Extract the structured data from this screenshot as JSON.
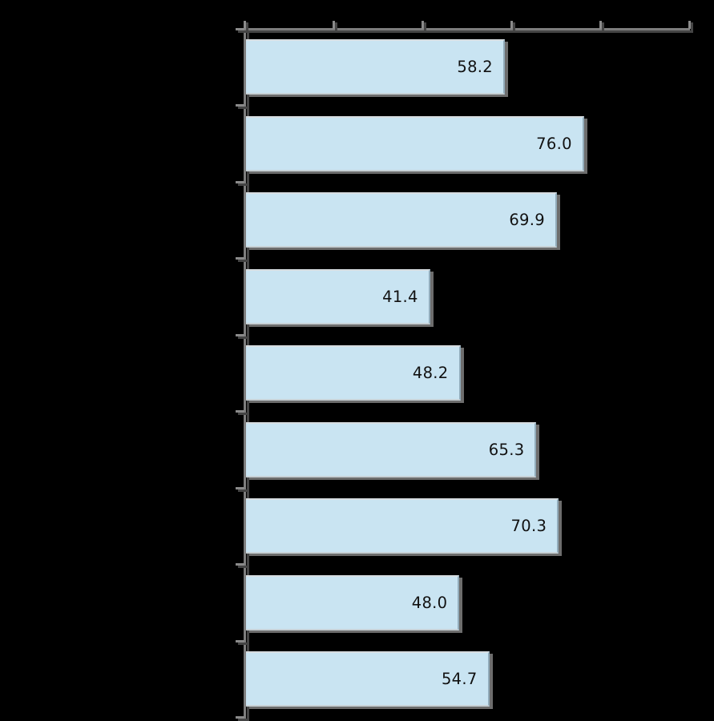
{
  "chart_data": {
    "type": "bar",
    "orientation": "horizontal",
    "title": "",
    "categories": [
      "",
      "",
      "",
      "",
      "",
      "",
      "",
      "",
      ""
    ],
    "values": [
      58.2,
      76.0,
      69.9,
      41.4,
      48.2,
      65.3,
      70.3,
      48.0,
      54.7
    ],
    "value_labels": [
      "58.2",
      "76.0",
      "69.9",
      "41.4",
      "48.2",
      "65.3",
      "70.3",
      "48.0",
      "54.7"
    ],
    "value_label_position": "inside-end",
    "xlim": [
      0,
      100
    ],
    "x_tick_count": 6,
    "x_tick_interval": 20,
    "x_tick_labels_visible": false,
    "category_labels_visible": false,
    "grid": false,
    "legend": false
  },
  "style": {
    "background_color": "#000000",
    "bar_fill_color": "#c9e4f2",
    "bar_border_light_color": "#d7dde1",
    "bar_border_bottom_color": "#c7d1d6",
    "bar_border_right_color": "#92acbb",
    "bar_shadow_color": "#6d6d6d",
    "axis_line_color": "#7d7d7d",
    "axis_shadow_color": "#454545",
    "tick_color": "#8a8a8a",
    "value_label_color": "#111111"
  }
}
